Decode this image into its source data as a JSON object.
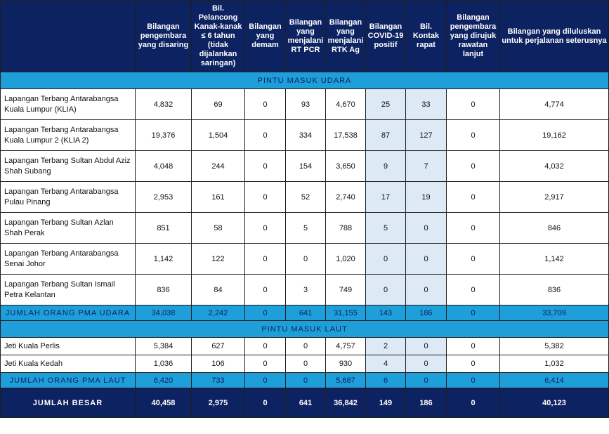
{
  "headers": [
    "",
    "Bilangan pengembara yang disaring",
    "Bil. Pelancong Kanak-kanak ≤ 6 tahun (tidak dijalankan saringan)",
    "Bilangan yang demam",
    "Bilangan yang menjalani RT PCR",
    "Bilangan yang menjalani RTK Ag",
    "Bilangan COVID-19 positif",
    "Bil. Kontak rapat",
    "Bilangan pengembara yang dirujuk rawatan lanjut",
    "Bilangan yang diluluskan untuk perjalanan seterusnya"
  ],
  "sections": {
    "air": "PINTU MASUK UDARA",
    "sea": "PINTU MASUK LAUT"
  },
  "air_rows": [
    {
      "name": "Lapangan Terbang Antarabangsa Kuala Lumpur (KLIA)",
      "cells": [
        "4,832",
        "69",
        "0",
        "93",
        "4,670",
        "25",
        "33",
        "0",
        "4,774"
      ]
    },
    {
      "name": "Lapangan Terbang Antarabangsa Kuala Lumpur 2 (KLIA 2)",
      "cells": [
        "19,376",
        "1,504",
        "0",
        "334",
        "17,538",
        "87",
        "127",
        "0",
        "19,162"
      ]
    },
    {
      "name": "Lapangan Terbang Sultan Abdul Aziz Shah Subang",
      "cells": [
        "4,048",
        "244",
        "0",
        "154",
        "3,650",
        "9",
        "7",
        "0",
        "4,032"
      ]
    },
    {
      "name": "Lapangan Terbang Antarabangsa Pulau Pinang",
      "cells": [
        "2,953",
        "161",
        "0",
        "52",
        "2,740",
        "17",
        "19",
        "0",
        "2,917"
      ]
    },
    {
      "name": "Lapangan Terbang Sultan Azlan Shah Perak",
      "cells": [
        "851",
        "58",
        "0",
        "5",
        "788",
        "5",
        "0",
        "0",
        "846"
      ]
    },
    {
      "name": "Lapangan Terbang Antarabangsa Senai Johor",
      "cells": [
        "1,142",
        "122",
        "0",
        "0",
        "1,020",
        "0",
        "0",
        "0",
        "1,142"
      ]
    },
    {
      "name": "Lapangan Terbang Sultan Ismail Petra Kelantan",
      "cells": [
        "836",
        "84",
        "0",
        "3",
        "749",
        "0",
        "0",
        "0",
        "836"
      ]
    }
  ],
  "air_total": {
    "name": "JUMLAH ORANG PMA UDARA",
    "cells": [
      "34,038",
      "2,242",
      "0",
      "641",
      "31,155",
      "143",
      "186",
      "0",
      "33,709"
    ]
  },
  "sea_rows": [
    {
      "name": "Jeti Kuala Perlis",
      "cells": [
        "5,384",
        "627",
        "0",
        "0",
        "4,757",
        "2",
        "0",
        "0",
        "5,382"
      ]
    },
    {
      "name": "Jeti Kuala Kedah",
      "cells": [
        "1,036",
        "106",
        "0",
        "0",
        "930",
        "4",
        "0",
        "0",
        "1,032"
      ]
    }
  ],
  "sea_total": {
    "name": "JUMLAH ORANG PMA LAUT",
    "cells": [
      "6,420",
      "733",
      "0",
      "0",
      "5,687",
      "6",
      "0",
      "0",
      "6,414"
    ]
  },
  "grand_total": {
    "name": "JUMLAH BESAR",
    "cells": [
      "40,458",
      "2,975",
      "0",
      "641",
      "36,842",
      "149",
      "186",
      "0",
      "40,123"
    ]
  },
  "colors": {
    "header_bg": "#0d2260",
    "section_bg": "#1f9fd9",
    "highlight_bg": "#dde9f5"
  }
}
